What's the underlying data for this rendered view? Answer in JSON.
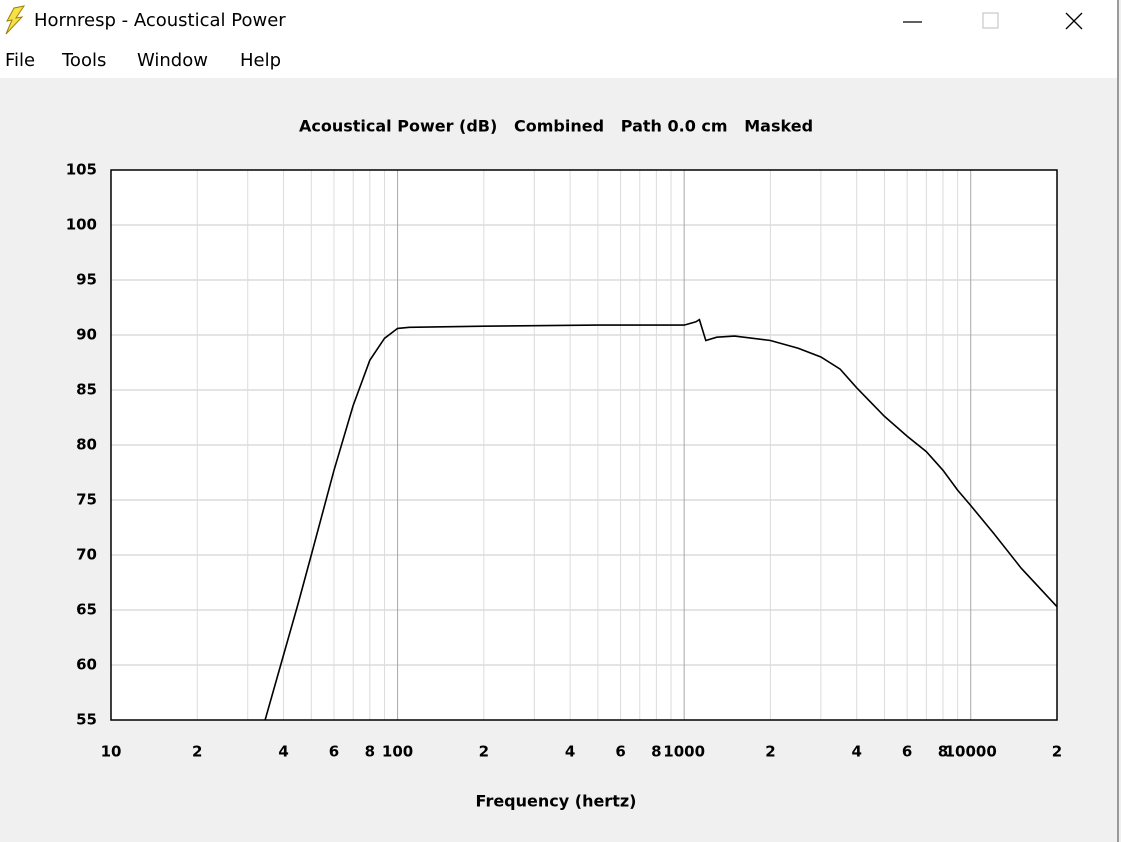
{
  "window": {
    "title": "Hornresp - Acoustical Power"
  },
  "menu": [
    "File",
    "Tools",
    "Window",
    "Help"
  ],
  "chart_data": {
    "type": "line",
    "title": "Acoustical Power (dB)   Combined   Path 0.0 cm   Masked",
    "xlabel": "Frequency (hertz)",
    "xscale": "log",
    "xlim": [
      10,
      20000
    ],
    "ylim": [
      55,
      105
    ],
    "xticks": [
      10,
      {
        "value": 20,
        "label": "2"
      },
      {
        "value": 40,
        "label": "4"
      },
      {
        "value": 60,
        "label": "6"
      },
      {
        "value": 80,
        "label": "8"
      },
      100,
      {
        "value": 200,
        "label": "2"
      },
      {
        "value": 400,
        "label": "4"
      },
      {
        "value": 600,
        "label": "6"
      },
      {
        "value": 800,
        "label": "8"
      },
      1000,
      {
        "value": 2000,
        "label": "2"
      },
      {
        "value": 4000,
        "label": "4"
      },
      {
        "value": 6000,
        "label": "6"
      },
      {
        "value": 8000,
        "label": "8"
      },
      10000,
      {
        "value": 20000,
        "label": "2"
      }
    ],
    "xminor_ticks": [
      30,
      50,
      70,
      90,
      300,
      500,
      700,
      900,
      3000,
      5000,
      7000,
      9000
    ],
    "yticks": [
      55,
      60,
      65,
      70,
      75,
      80,
      85,
      90,
      95,
      100,
      105
    ],
    "grid": true,
    "x": [
      34.5,
      40,
      45,
      50,
      60,
      70,
      80,
      90,
      100,
      110,
      200,
      500,
      1000,
      1100,
      1130,
      1190,
      1300,
      1500,
      2000,
      2500,
      3000,
      3500,
      4000,
      5000,
      6000,
      7000,
      8000,
      9000,
      10000,
      12000,
      15000,
      20000
    ],
    "series": [
      {
        "color": "#000000",
        "values": [
          55,
          60.9,
          65.6,
          70,
          77.7,
          83.6,
          87.7,
          89.7,
          90.6,
          90.7,
          90.8,
          90.9,
          90.9,
          91.2,
          91.4,
          89.5,
          89.8,
          89.9,
          89.5,
          88.8,
          88,
          86.9,
          85.2,
          82.6,
          80.8,
          79.4,
          77.7,
          75.9,
          74.5,
          72,
          68.8,
          65.3
        ]
      }
    ]
  }
}
